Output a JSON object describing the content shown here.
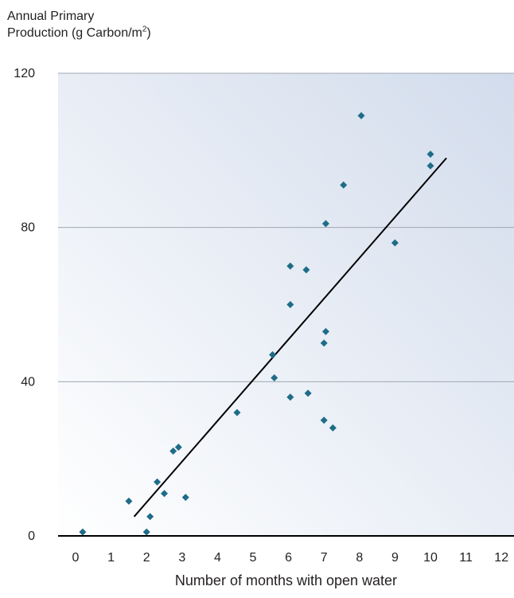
{
  "chart_data": {
    "type": "scatter",
    "ylabel_line1": "Annual Primary",
    "ylabel_line2_prefix": "Production (g Carbon/m",
    "ylabel_line2_sup": "2",
    "ylabel_line2_suffix": ")",
    "xlabel": "Number of months with open water",
    "xlim": [
      -0.5,
      12.5
    ],
    "ylim": [
      0,
      120
    ],
    "x_ticks": [
      0,
      1,
      2,
      3,
      4,
      5,
      6,
      7,
      8,
      9,
      10,
      11,
      12
    ],
    "y_ticks": [
      0,
      40,
      80,
      120
    ],
    "grid": "horizontal",
    "legend": "none",
    "colors": {
      "marker": "#1e6c88",
      "fit_line": "#000000",
      "grid": "#a0a8b4",
      "axis": "#000000",
      "background_light": "#ffffff",
      "background_dark": "#d2dcec"
    },
    "points": [
      {
        "x": 0.2,
        "y": 1
      },
      {
        "x": 1.5,
        "y": 9
      },
      {
        "x": 2.0,
        "y": 1
      },
      {
        "x": 2.1,
        "y": 5
      },
      {
        "x": 2.3,
        "y": 14
      },
      {
        "x": 2.5,
        "y": 11
      },
      {
        "x": 2.75,
        "y": 22
      },
      {
        "x": 2.9,
        "y": 23
      },
      {
        "x": 3.1,
        "y": 10
      },
      {
        "x": 4.55,
        "y": 32
      },
      {
        "x": 5.55,
        "y": 47
      },
      {
        "x": 5.6,
        "y": 41
      },
      {
        "x": 6.05,
        "y": 36
      },
      {
        "x": 6.05,
        "y": 60
      },
      {
        "x": 6.05,
        "y": 70
      },
      {
        "x": 6.5,
        "y": 69
      },
      {
        "x": 6.55,
        "y": 37
      },
      {
        "x": 7.0,
        "y": 30
      },
      {
        "x": 7.0,
        "y": 50
      },
      {
        "x": 7.05,
        "y": 53
      },
      {
        "x": 7.05,
        "y": 81
      },
      {
        "x": 7.25,
        "y": 28
      },
      {
        "x": 7.55,
        "y": 91
      },
      {
        "x": 8.05,
        "y": 109
      },
      {
        "x": 9.0,
        "y": 76
      },
      {
        "x": 10.0,
        "y": 99
      },
      {
        "x": 10.0,
        "y": 96
      }
    ],
    "fit_line": {
      "x1": 1.65,
      "y1": 5,
      "x2": 10.45,
      "y2": 98
    }
  }
}
